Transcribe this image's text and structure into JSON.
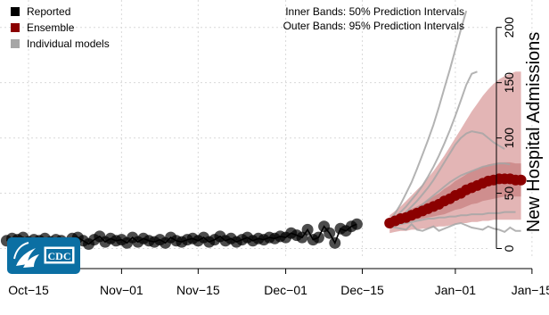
{
  "chart_data": {
    "type": "line",
    "ylabel": "New Hospital Admissions",
    "ylim": [
      -2,
      207
    ],
    "yticks": [
      0,
      50,
      100,
      150,
      200
    ],
    "x_ticks": [
      "Oct−15",
      "Nov−01",
      "Nov−15",
      "Dec−01",
      "Dec−15",
      "Jan−01",
      "Jan−15"
    ],
    "x_tick_dates": [
      "2021-10-15",
      "2021-11-01",
      "2021-11-15",
      "2021-12-01",
      "2021-12-15",
      "2022-01-01",
      "2022-01-15"
    ],
    "grid": true,
    "legend": {
      "position": "top-left",
      "items": [
        {
          "label": "Reported",
          "color": "#000000"
        },
        {
          "label": "Ensemble",
          "color": "#8b0000"
        },
        {
          "label": "Individual models",
          "color": "#a6a6a6"
        }
      ]
    },
    "annotations": [
      "Inner Bands: 50% Prediction Intervals",
      "Outer Bands: 95% Prediction Intervals"
    ],
    "logo_text": "CDC",
    "reported": {
      "start_date": "2021-10-11",
      "values": [
        7,
        9,
        8,
        10,
        6,
        8,
        7,
        9,
        6,
        8,
        7,
        5,
        9,
        10,
        7,
        4,
        8,
        11,
        6,
        9,
        7,
        8,
        5,
        10,
        6,
        9,
        7,
        6,
        8,
        5,
        10,
        7,
        6,
        8,
        9,
        7,
        10,
        6,
        8,
        11,
        7,
        9,
        6,
        8,
        10,
        7,
        9,
        8,
        10,
        9,
        11,
        10,
        14,
        12,
        10,
        17,
        8,
        10,
        20,
        14,
        5,
        18,
        16,
        20,
        22
      ]
    },
    "ensemble": {
      "start_date": "2021-12-20",
      "median": [
        23,
        25,
        27,
        28,
        30,
        32,
        34,
        36,
        38,
        40,
        43,
        45,
        48,
        50,
        53,
        55,
        57,
        59,
        61,
        62,
        63,
        63,
        63,
        62,
        62
      ],
      "pi50_lower": [
        21,
        22,
        23,
        24,
        25,
        26,
        27,
        28,
        29,
        30,
        31,
        33,
        35,
        36,
        38,
        40,
        41,
        43,
        44,
        45,
        46,
        47,
        47,
        47,
        47
      ],
      "pi50_upper": [
        26,
        28,
        31,
        33,
        36,
        38,
        41,
        44,
        47,
        50,
        54,
        57,
        61,
        64,
        67,
        70,
        72,
        74,
        76,
        77,
        78,
        78,
        78,
        77,
        77
      ],
      "pi95_lower": [
        14,
        15,
        16,
        16,
        17,
        17,
        18,
        18,
        19,
        20,
        20,
        21,
        22,
        23,
        23,
        24,
        24,
        25,
        25,
        26,
        26,
        26,
        26,
        26,
        26
      ],
      "pi95_upper": [
        30,
        34,
        38,
        43,
        48,
        53,
        58,
        64,
        70,
        77,
        84,
        92,
        100,
        108,
        116,
        124,
        131,
        138,
        144,
        149,
        153,
        156,
        158,
        160,
        160
      ]
    },
    "individual_models": [
      {
        "start_date": "2021-12-20",
        "values": [
          25,
          32,
          40,
          50,
          60,
          72,
          85,
          98,
          112,
          128,
          145,
          162,
          180,
          198,
          215
        ]
      },
      {
        "start_date": "2021-12-20",
        "values": [
          24,
          28,
          33,
          38,
          44,
          50,
          57,
          65,
          74,
          84,
          95,
          107,
          120,
          134,
          148,
          158,
          160
        ]
      },
      {
        "start_date": "2021-12-20",
        "values": [
          22,
          25,
          29,
          33,
          38,
          43,
          49,
          55,
          62,
          70,
          78,
          86,
          94,
          100,
          104,
          106,
          105,
          104,
          100,
          96,
          93,
          90
        ]
      },
      {
        "start_date": "2021-12-20",
        "values": [
          22,
          24,
          26,
          29,
          32,
          36,
          40,
          44,
          48,
          52,
          56,
          60,
          63,
          66,
          68,
          70,
          72,
          74,
          75,
          76,
          77,
          77,
          76
        ]
      },
      {
        "start_date": "2021-12-20",
        "values": [
          20,
          21,
          22,
          23,
          24,
          25,
          26,
          27,
          27,
          28,
          28,
          29,
          29,
          30,
          30,
          31,
          31,
          31,
          32,
          32,
          32,
          33,
          33,
          33
        ]
      },
      {
        "start_date": "2021-12-20",
        "values": [
          20,
          19,
          18,
          17,
          22,
          17,
          16,
          18,
          20,
          16,
          18,
          20,
          22,
          23,
          21,
          19,
          18,
          17,
          20,
          18,
          17,
          15,
          19,
          16,
          16
        ]
      }
    ]
  }
}
